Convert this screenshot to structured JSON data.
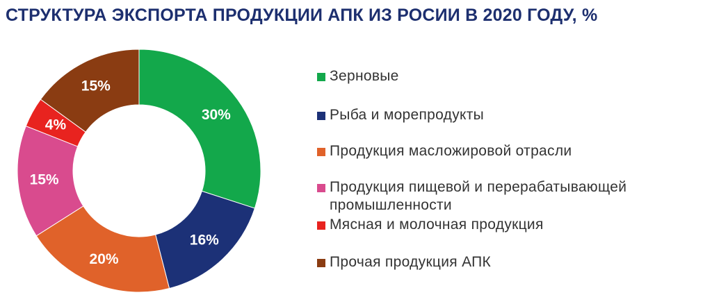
{
  "title": "СТРУКТУРА ЭКСПОРТА ПРОДУКЦИИ АПК ИЗ РОСИИ В 2020 ГОДУ, %",
  "chart_data": {
    "type": "pie",
    "variant": "donut",
    "legend_position": "right",
    "slices": [
      {
        "label": "Зерновые",
        "value": 30,
        "display": "30%",
        "color": "#13a84b"
      },
      {
        "label": "Рыба и морепродукты",
        "value": 16,
        "display": "16%",
        "color": "#1c3177"
      },
      {
        "label": "Продукция масложировой отрасли",
        "value": 20,
        "display": "20%",
        "color": "#e0622a"
      },
      {
        "label": "Продукция пищевой и перерабатывающей промышленности",
        "value": 15,
        "display": "15%",
        "color": "#d94b8e"
      },
      {
        "label": "Мясная и молочная продукция",
        "value": 4,
        "display": "4%",
        "color": "#e8231f"
      },
      {
        "label": "Прочая продукция АПК",
        "value": 15,
        "display": "15%",
        "color": "#8a3c12"
      }
    ]
  }
}
